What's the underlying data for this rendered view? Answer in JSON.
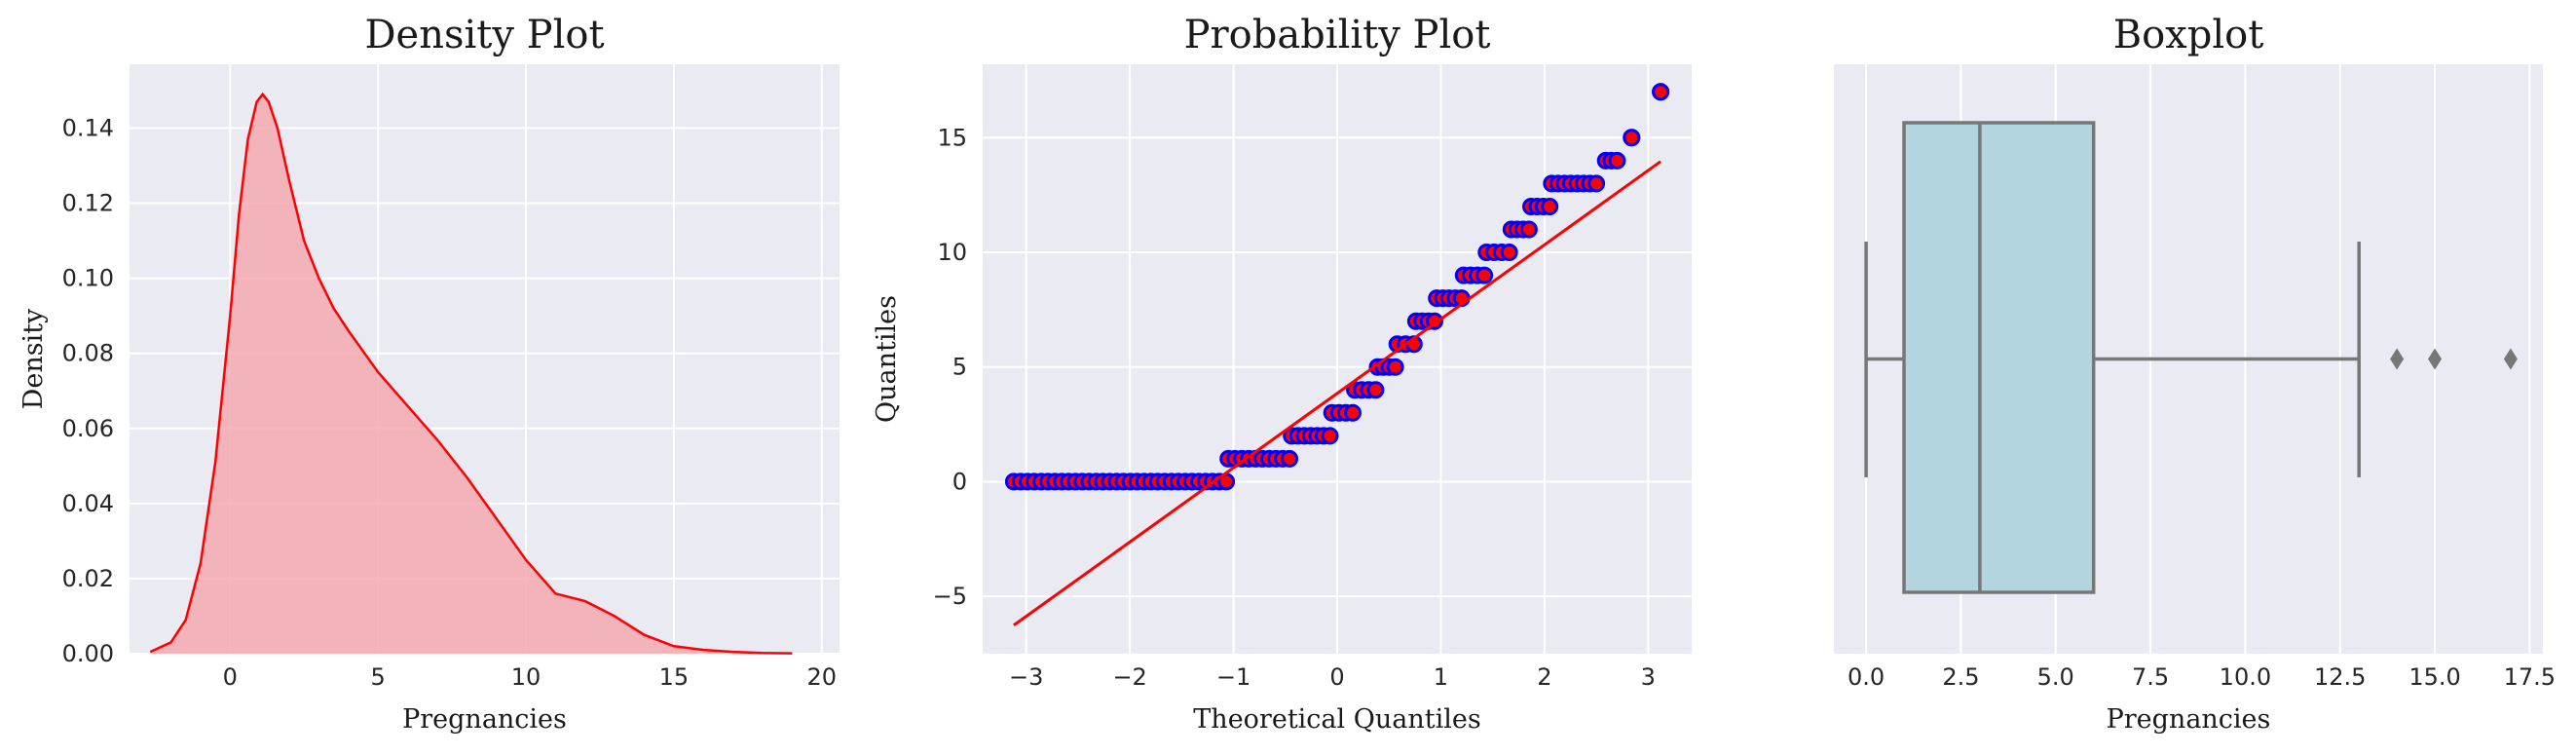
{
  "colors": {
    "background": "#eaeaf2",
    "grid": "#ffffff",
    "density_line": "#ff0000",
    "density_fill": "#f4a9b0",
    "qq_marker_face": "#ff0000",
    "qq_marker_edge": "#0000ff",
    "qq_line": "#ff0000",
    "box_fill": "#b3d5df",
    "box_line": "#777777"
  },
  "chart_data": [
    {
      "type": "area",
      "title": "Density Plot",
      "xlabel": "Pregnancies",
      "ylabel": "Density",
      "xlim": [
        -3.4,
        20.6
      ],
      "ylim": [
        0,
        0.157
      ],
      "grid": true,
      "xticks": [
        0,
        5,
        10,
        15,
        20
      ],
      "xtick_labels": [
        "0",
        "5",
        "10",
        "15",
        "20"
      ],
      "yticks": [
        0,
        0.02,
        0.04,
        0.06,
        0.08,
        0.1,
        0.12,
        0.14
      ],
      "ytick_labels": [
        "0.00",
        "0.02",
        "0.04",
        "0.06",
        "0.08",
        "0.10",
        "0.12",
        "0.14"
      ],
      "series": [
        {
          "x": [
            -2.7,
            -2,
            -1.5,
            -1,
            -0.5,
            0,
            0.3,
            0.6,
            0.9,
            1.1,
            1.3,
            1.6,
            2,
            2.5,
            3,
            3.5,
            4,
            5,
            6,
            7,
            8,
            9,
            10,
            11,
            11.5,
            12,
            12.5,
            13,
            14,
            15,
            16,
            17,
            18,
            19
          ],
          "y": [
            0.0005,
            0.003,
            0.009,
            0.024,
            0.051,
            0.09,
            0.117,
            0.137,
            0.147,
            0.149,
            0.147,
            0.14,
            0.126,
            0.11,
            0.1,
            0.092,
            0.086,
            0.075,
            0.066,
            0.057,
            0.047,
            0.036,
            0.025,
            0.016,
            0.015,
            0.014,
            0.012,
            0.01,
            0.005,
            0.002,
            0.001,
            0.0005,
            0.0002,
            0.0001
          ]
        }
      ]
    },
    {
      "type": "scatter",
      "title": "Probability Plot",
      "xlabel": "Theoretical Quantiles",
      "ylabel": "Quantiles",
      "xlim": [
        -3.42,
        3.42
      ],
      "ylim": [
        -7.5,
        18.2
      ],
      "grid": true,
      "xticks": [
        -3,
        -2,
        -1,
        0,
        1,
        2,
        3
      ],
      "xtick_labels": [
        "−3",
        "−2",
        "−1",
        "0",
        "1",
        "2",
        "3"
      ],
      "yticks": [
        -5,
        0,
        5,
        10,
        15
      ],
      "ytick_labels": [
        "−5",
        "0",
        "5",
        "10",
        "15"
      ],
      "fit_line": {
        "slope": 3.24,
        "intercept": 3.85,
        "x_range": [
          -3.12,
          3.12
        ]
      },
      "series": [
        {
          "y": 0,
          "x_from": -3.12,
          "x_to": -1.07
        },
        {
          "y": 1,
          "x_from": -1.05,
          "x_to": -0.46
        },
        {
          "y": 2,
          "x_from": -0.44,
          "x_to": -0.07
        },
        {
          "y": 3,
          "x_from": -0.05,
          "x_to": 0.15
        },
        {
          "y": 4,
          "x_from": 0.17,
          "x_to": 0.37
        },
        {
          "y": 5,
          "x_from": 0.39,
          "x_to": 0.56
        },
        {
          "y": 6,
          "x_from": 0.58,
          "x_to": 0.74
        },
        {
          "y": 7,
          "x_from": 0.76,
          "x_to": 0.94
        },
        {
          "y": 8,
          "x_from": 0.96,
          "x_to": 1.2
        },
        {
          "y": 9,
          "x_from": 1.22,
          "x_to": 1.42
        },
        {
          "y": 10,
          "x_from": 1.44,
          "x_to": 1.66
        },
        {
          "y": 11,
          "x_from": 1.68,
          "x_to": 1.85
        },
        {
          "y": 12,
          "x_from": 1.87,
          "x_to": 2.05
        },
        {
          "y": 13,
          "x_from": 2.07,
          "x_to": 2.5
        },
        {
          "y": 14,
          "x_from": 2.59,
          "x_to": 2.7
        },
        {
          "y": 15,
          "x_from": 2.84,
          "x_to": 2.84
        },
        {
          "y": 17,
          "x_from": 3.12,
          "x_to": 3.12
        }
      ]
    },
    {
      "type": "box",
      "title": "Boxplot",
      "xlabel": "Pregnancies",
      "ylabel": "",
      "xlim": [
        -0.85,
        17.85
      ],
      "grid": true,
      "xticks": [
        0,
        2.5,
        5,
        7.5,
        10,
        12.5,
        15,
        17.5
      ],
      "xtick_labels": [
        "0.0",
        "2.5",
        "5.0",
        "7.5",
        "10.0",
        "12.5",
        "15.0",
        "17.5"
      ],
      "stats": {
        "whisker_low": 0,
        "q1": 1,
        "median": 3,
        "q3": 6,
        "whisker_high": 13
      },
      "outliers": [
        14,
        15,
        17
      ]
    }
  ]
}
